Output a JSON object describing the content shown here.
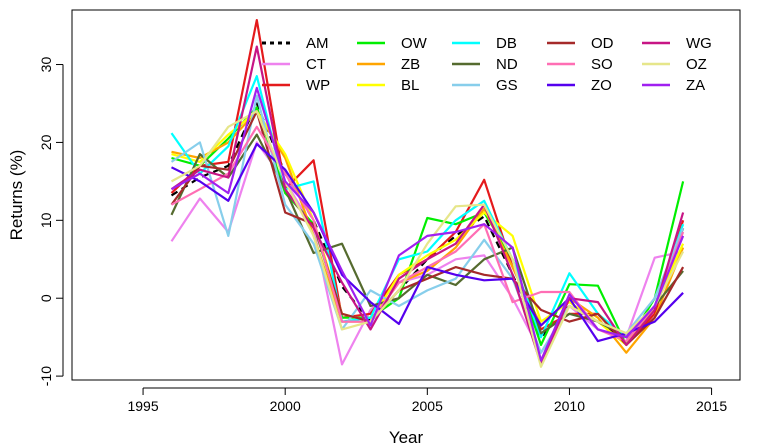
{
  "chart_data": {
    "type": "line",
    "title": "",
    "xlabel": "Year",
    "ylabel": "Returns (%)",
    "xlim": [
      1992.5,
      2016.0
    ],
    "ylim": [
      -10.5,
      37.0
    ],
    "xticks": [
      1995,
      2000,
      2005,
      2010,
      2015
    ],
    "yticks": [
      -10,
      0,
      10,
      20,
      30
    ],
    "grid": false,
    "legend_position": "top-right",
    "x": [
      1996,
      1997,
      1998,
      1999,
      2000,
      2001,
      2002,
      2003,
      2004,
      2005,
      2006,
      2007,
      2008,
      2009,
      2010,
      2011,
      2012,
      2013,
      2014
    ],
    "series": [
      {
        "name": "AM",
        "color": "#000000",
        "dashed": true,
        "values": [
          13.2,
          15.5,
          17.0,
          25.0,
          16.0,
          10.0,
          1.5,
          -3.0,
          1.0,
          5.0,
          8.0,
          10.5,
          3.0,
          -5.0,
          -1.0,
          -3.0,
          -5.5,
          -1.0,
          9.0
        ]
      },
      {
        "name": "CT",
        "color": "#EE82EE",
        "values": [
          7.3,
          12.8,
          8.5,
          20.0,
          15.0,
          9.0,
          -8.5,
          -1.5,
          2.0,
          3.0,
          5.0,
          5.5,
          0.0,
          -7.0,
          -1.0,
          -4.0,
          -5.0,
          5.2,
          6.0
        ]
      },
      {
        "name": "WP",
        "color": "#E41A1C",
        "values": [
          13.5,
          17.0,
          17.5,
          35.7,
          14.0,
          17.7,
          -2.5,
          -2.0,
          3.0,
          5.0,
          8.5,
          15.2,
          4.0,
          -4.0,
          -2.0,
          -2.0,
          -6.0,
          -2.0,
          10.0
        ]
      },
      {
        "name": "OW",
        "color": "#00EE00",
        "values": [
          18.0,
          17.0,
          20.5,
          24.5,
          13.5,
          9.5,
          -2.5,
          -2.5,
          0.0,
          10.3,
          9.5,
          11.0,
          5.0,
          -6.0,
          1.8,
          1.6,
          -6.0,
          0.0,
          15.0
        ]
      },
      {
        "name": "ZB",
        "color": "#FFA500",
        "values": [
          18.8,
          18.0,
          20.0,
          24.0,
          18.0,
          8.0,
          -3.0,
          -3.0,
          2.0,
          3.5,
          6.5,
          11.5,
          4.0,
          -3.5,
          0.0,
          -2.5,
          -7.0,
          -2.5,
          6.5
        ]
      },
      {
        "name": "BL",
        "color": "#FFFF00",
        "values": [
          18.5,
          17.5,
          21.0,
          24.0,
          18.5,
          10.0,
          -2.0,
          -3.0,
          3.0,
          5.5,
          7.5,
          11.0,
          8.0,
          -3.0,
          -0.5,
          -3.0,
          -6.0,
          -1.0,
          7.0
        ]
      },
      {
        "name": "DB",
        "color": "#00FFFF",
        "values": [
          21.2,
          16.0,
          19.5,
          28.5,
          14.0,
          15.0,
          -3.0,
          -2.5,
          5.0,
          6.0,
          10.0,
          12.5,
          5.0,
          -5.0,
          3.2,
          -2.0,
          -5.0,
          -1.0,
          9.5
        ]
      },
      {
        "name": "ND",
        "color": "#556B2F",
        "values": [
          10.7,
          18.5,
          15.5,
          21.0,
          14.0,
          5.8,
          7.0,
          -1.0,
          0.0,
          3.0,
          1.7,
          5.0,
          6.5,
          -4.5,
          -2.0,
          -3.0,
          -5.0,
          -1.0,
          3.5
        ]
      },
      {
        "name": "GS",
        "color": "#87CEEB",
        "values": [
          17.5,
          20.0,
          8.0,
          26.0,
          12.0,
          7.0,
          -4.0,
          1.0,
          -1.0,
          1.0,
          2.5,
          7.5,
          2.5,
          -7.0,
          -1.0,
          -3.0,
          -4.5,
          0.0,
          9.0
        ]
      },
      {
        "name": "OD",
        "color": "#A52A2A",
        "values": [
          12.0,
          17.0,
          16.5,
          24.0,
          11.0,
          9.5,
          -2.0,
          -3.0,
          1.0,
          2.5,
          4.0,
          3.0,
          2.5,
          -1.5,
          -3.0,
          -2.0,
          -6.0,
          -2.5,
          4.0
        ]
      },
      {
        "name": "SO",
        "color": "#FF6EB4",
        "values": [
          12.0,
          14.0,
          16.0,
          22.0,
          16.0,
          10.0,
          -3.0,
          -3.0,
          2.0,
          4.0,
          6.0,
          9.5,
          -0.5,
          0.8,
          0.8,
          -4.0,
          -5.5,
          -1.0,
          8.5
        ]
      },
      {
        "name": "ZO",
        "color": "#5500EE",
        "values": [
          16.8,
          15.0,
          12.5,
          19.8,
          16.5,
          11.0,
          3.0,
          -0.5,
          -3.3,
          4.0,
          3.0,
          2.3,
          2.5,
          -3.5,
          0.0,
          -5.5,
          -4.5,
          -3.0,
          0.7
        ]
      },
      {
        "name": "WG",
        "color": "#C71585",
        "values": [
          14.0,
          16.5,
          15.5,
          32.3,
          14.0,
          9.0,
          2.0,
          -4.0,
          2.5,
          5.0,
          7.0,
          12.0,
          3.0,
          -8.5,
          0.0,
          -0.5,
          -6.0,
          -1.5,
          11.0
        ]
      },
      {
        "name": "OZ",
        "color": "#E6E68A",
        "values": [
          15.0,
          17.0,
          22.0,
          24.0,
          15.0,
          8.0,
          -4.0,
          -3.0,
          1.0,
          7.0,
          11.8,
          12.0,
          5.0,
          -8.8,
          -1.0,
          -3.0,
          -4.5,
          -1.0,
          6.0
        ]
      },
      {
        "name": "ZA",
        "color": "#A020F0",
        "values": [
          14.0,
          16.0,
          13.5,
          27.0,
          15.0,
          11.0,
          3.5,
          -3.5,
          5.5,
          8.0,
          8.5,
          9.5,
          6.5,
          -8.0,
          0.5,
          -4.0,
          -5.0,
          -1.0,
          8.0
        ]
      }
    ]
  }
}
